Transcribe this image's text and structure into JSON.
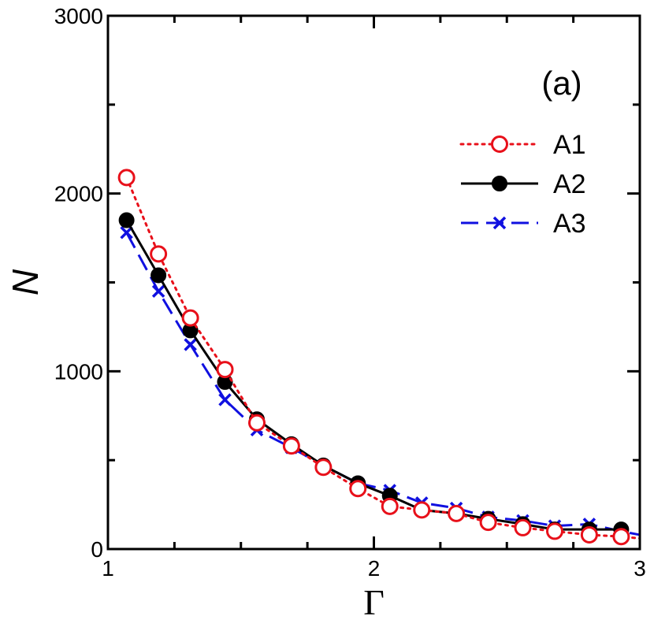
{
  "chart_data": {
    "type": "line",
    "panel_label": "(a)",
    "xlabel": "Γ",
    "ylabel": "N",
    "xlim": [
      1,
      3
    ],
    "ylim": [
      0,
      3000
    ],
    "x_major_ticks": [
      1,
      2,
      3
    ],
    "x_tick_labels": [
      "1",
      "2",
      "3"
    ],
    "x_minor_ticks": [
      1.25,
      1.5,
      1.75,
      2.25,
      2.5,
      2.75
    ],
    "y_major_ticks": [
      0,
      1000,
      2000,
      3000
    ],
    "y_tick_labels": [
      "0",
      "1000",
      "2000",
      "3000"
    ],
    "y_minor_ticks": [
      500,
      1500,
      2500
    ],
    "grid": false,
    "legend": "top-right",
    "series": [
      {
        "name": "A1",
        "color": "#e8101a",
        "line": "dotted",
        "marker": "open-circle",
        "x": [
          1.07,
          1.19,
          1.31,
          1.44,
          1.56,
          1.69,
          1.81,
          1.94,
          2.06,
          2.18,
          2.31,
          2.43,
          2.56,
          2.68,
          2.81,
          2.93,
          3.0
        ],
        "y": [
          2090,
          1660,
          1300,
          1010,
          710,
          580,
          460,
          340,
          240,
          220,
          200,
          150,
          120,
          100,
          80,
          70,
          60
        ]
      },
      {
        "name": "A2",
        "color": "#000000",
        "line": "solid",
        "marker": "filled-circle",
        "x": [
          1.07,
          1.19,
          1.31,
          1.44,
          1.56,
          1.69,
          1.81,
          1.94,
          2.06,
          2.18,
          2.31,
          2.43,
          2.56,
          2.68,
          2.81,
          2.93
        ],
        "y": [
          1850,
          1540,
          1230,
          940,
          730,
          590,
          470,
          370,
          300,
          220,
          200,
          170,
          140,
          110,
          110,
          110
        ]
      },
      {
        "name": "A3",
        "color": "#1010e0",
        "line": "dashed",
        "marker": "cross",
        "x": [
          1.07,
          1.19,
          1.31,
          1.44,
          1.56,
          1.69,
          1.81,
          1.94,
          2.06,
          2.18,
          2.31,
          2.43,
          2.56,
          2.68,
          2.81,
          2.93,
          3.0
        ],
        "y": [
          1780,
          1450,
          1150,
          840,
          670,
          570,
          470,
          370,
          330,
          260,
          230,
          180,
          160,
          130,
          140,
          100,
          80
        ]
      }
    ]
  }
}
